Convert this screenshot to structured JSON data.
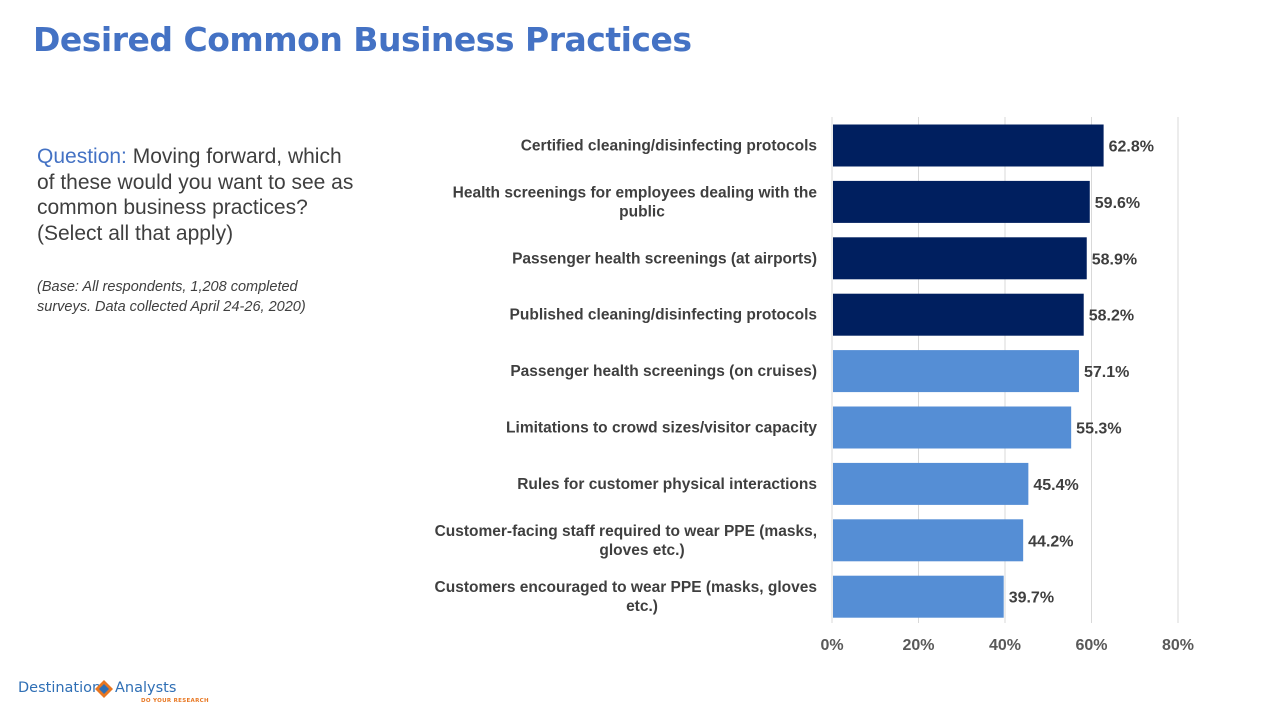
{
  "title": "Desired Common Business Practices",
  "question": {
    "label": "Question:",
    "text": "Moving forward, which of these would you want to see as common business practices? (Select all that apply)"
  },
  "base_note": "(Base: All respondents, 1,208 completed surveys. Data collected April 24-26, 2020)",
  "logo": {
    "name_left": "Destination",
    "name_right": "Analysts",
    "tagline": "DO YOUR RESEARCH"
  },
  "colors": {
    "title": "#4472c4",
    "dark_bar": "#001f5f",
    "light_bar": "#558ed5",
    "text": "#3f3f3f",
    "grid": "#d9d9d9"
  },
  "chart_data": {
    "type": "bar",
    "orientation": "horizontal",
    "categories": [
      "Certified cleaning/disinfecting protocols",
      "Health screenings for employees dealing with the public",
      "Passenger health screenings (at airports)",
      "Published cleaning/disinfecting protocols",
      "Passenger health screenings (on cruises)",
      "Limitations to crowd sizes/visitor capacity",
      "Rules for customer physical interactions",
      "Customer-facing staff required to wear PPE (masks, gloves etc.)",
      "Customers encouraged to wear PPE (masks, gloves etc.)"
    ],
    "values": [
      62.8,
      59.6,
      58.9,
      58.2,
      57.1,
      55.3,
      45.4,
      44.2,
      39.7
    ],
    "value_labels": [
      "62.8%",
      "59.6%",
      "58.9%",
      "58.2%",
      "57.1%",
      "55.3%",
      "45.4%",
      "44.2%",
      "39.7%"
    ],
    "highlight": [
      true,
      true,
      true,
      true,
      false,
      false,
      false,
      false,
      false
    ],
    "xlim": [
      0,
      80
    ],
    "xticks": [
      "0%",
      "20%",
      "40%",
      "60%",
      "80%"
    ],
    "grid": true,
    "title": "",
    "xlabel": "",
    "ylabel": ""
  }
}
